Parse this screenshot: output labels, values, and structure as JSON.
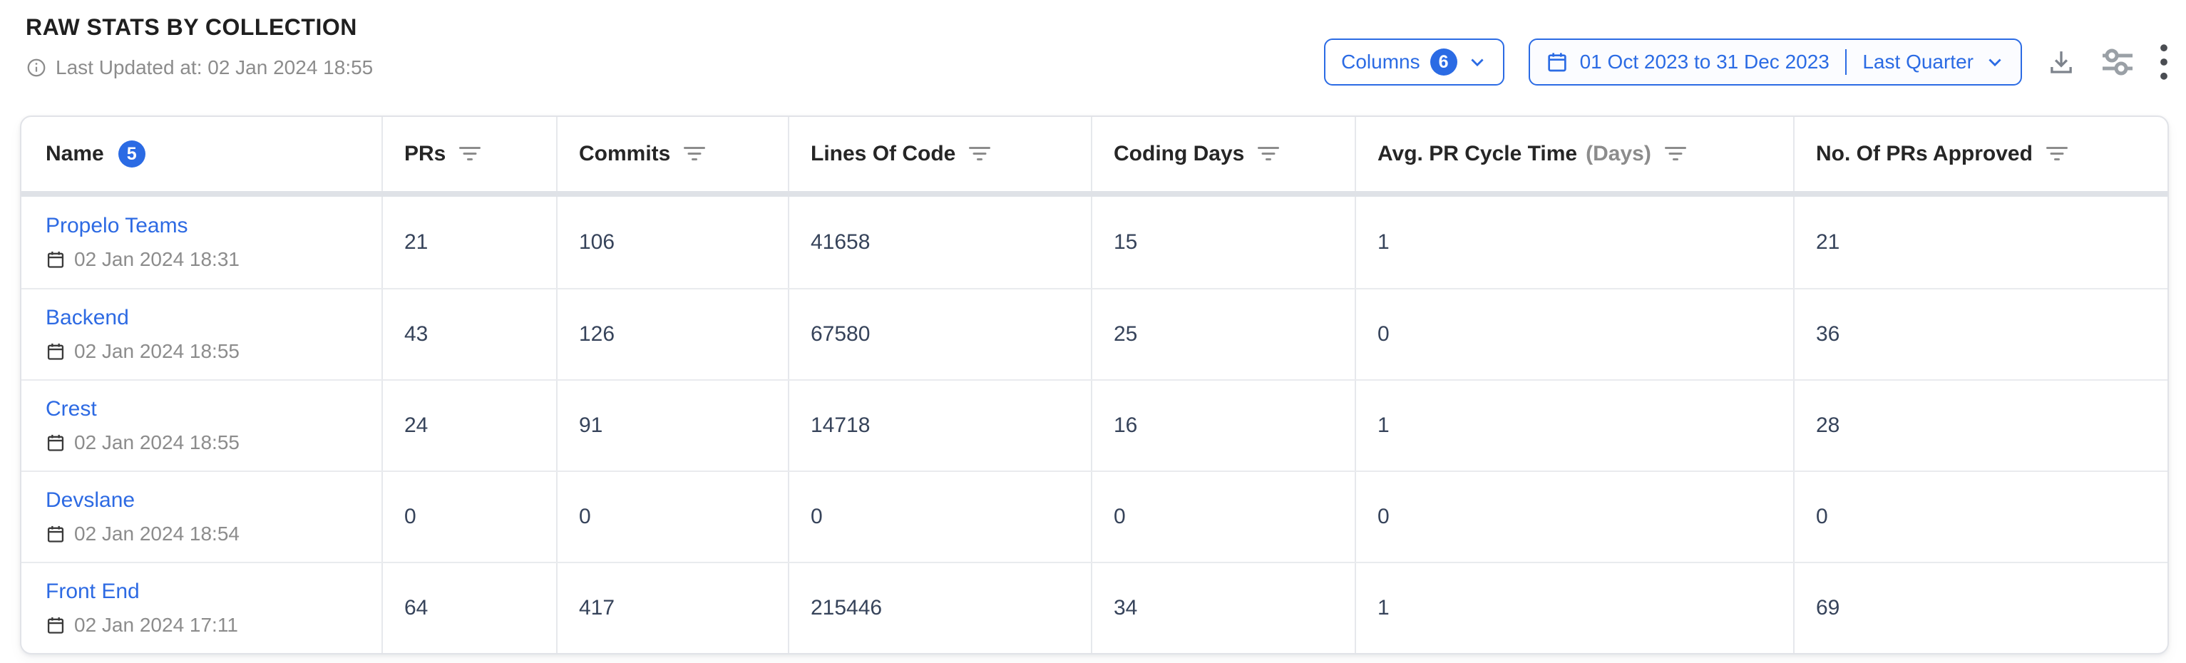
{
  "page": {
    "title": "RAW STATS BY COLLECTION",
    "last_updated": "Last Updated at: 02 Jan 2024 18:55"
  },
  "toolbar": {
    "columns_button": {
      "label": "Columns",
      "count": "6"
    },
    "date_button": {
      "range": "01 Oct 2023 to 31 Dec 2023",
      "preset": "Last Quarter"
    },
    "icons": {
      "columns_chevron": "chevron-down",
      "date_calendar": "calendar",
      "date_chevron": "chevron-down",
      "download": "download",
      "settings": "sliders",
      "more": "kebab-menu",
      "info": "info-circle",
      "column_filter": "filter-lines",
      "row_calendar": "calendar"
    }
  },
  "table": {
    "name_column": {
      "label": "Name",
      "count": "5"
    },
    "columns": [
      {
        "label": "PRs",
        "suffix": ""
      },
      {
        "label": "Commits",
        "suffix": ""
      },
      {
        "label": "Lines Of Code",
        "suffix": ""
      },
      {
        "label": "Coding Days",
        "suffix": ""
      },
      {
        "label": "Avg. PR Cycle Time",
        "suffix": "(Days)"
      },
      {
        "label": "No. Of PRs Approved",
        "suffix": ""
      }
    ],
    "rows": [
      {
        "name": "Propelo Teams",
        "updated": "02 Jan 2024 18:31",
        "values": [
          "21",
          "106",
          "41658",
          "15",
          "1",
          "21"
        ]
      },
      {
        "name": "Backend",
        "updated": "02 Jan 2024 18:55",
        "values": [
          "43",
          "126",
          "67580",
          "25",
          "0",
          "36"
        ]
      },
      {
        "name": "Crest",
        "updated": "02 Jan 2024 18:55",
        "values": [
          "24",
          "91",
          "14718",
          "16",
          "1",
          "28"
        ]
      },
      {
        "name": "Devslane",
        "updated": "02 Jan 2024 18:54",
        "values": [
          "0",
          "0",
          "0",
          "0",
          "0",
          "0"
        ]
      },
      {
        "name": "Front End",
        "updated": "02 Jan 2024 17:11",
        "values": [
          "64",
          "417",
          "215446",
          "34",
          "1",
          "69"
        ]
      }
    ]
  },
  "colors": {
    "accent": "#2B6BE4",
    "link": "#2D6AE3",
    "heading_text": "#1F1F1F",
    "cell_text": "#36435A",
    "muted_text": "#8C8C8C",
    "card_border": "#E1E3E8",
    "header_band": "#DFE2E7"
  }
}
